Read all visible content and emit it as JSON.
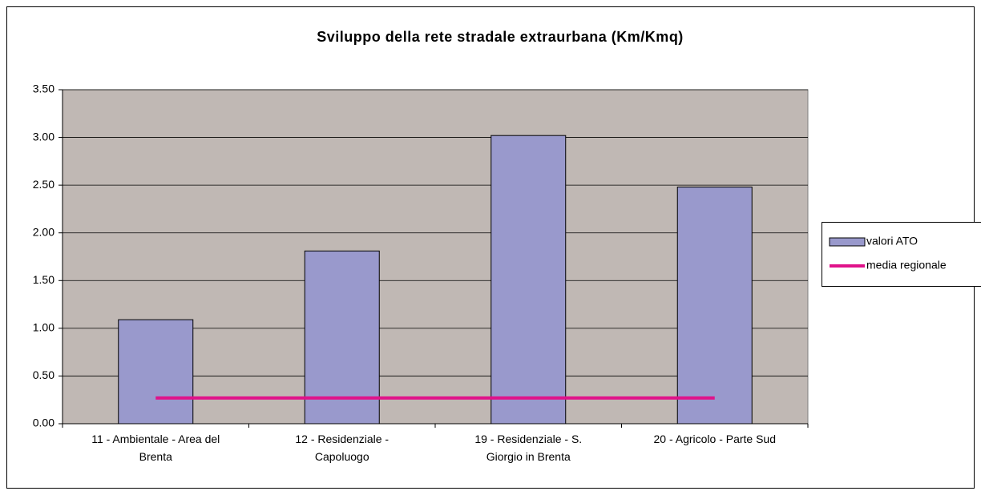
{
  "chart_data": {
    "type": "bar",
    "title": "Sviluppo della rete stradale extraurbana (Km/Kmq)",
    "categories": [
      "11 - Ambientale - Area del Brenta",
      "12 - Residenziale - Capoluogo",
      "19 - Residenziale - S. Giorgio in Brenta",
      "20 - Agricolo - Parte Sud"
    ],
    "series": [
      {
        "name": "valori ATO",
        "type": "bar",
        "color": "#9999cc",
        "values": [
          1.09,
          1.81,
          3.02,
          2.48
        ]
      },
      {
        "name": "media regionale",
        "type": "line",
        "color": "#e0128a",
        "values": [
          0.27,
          0.27,
          0.27,
          0.27
        ]
      }
    ],
    "ylim": [
      0,
      3.5
    ],
    "yticks": [
      {
        "value": 0,
        "label": "0.00"
      },
      {
        "value": 0.5,
        "label": "0.50"
      },
      {
        "value": 1,
        "label": "1.00"
      },
      {
        "value": 1.5,
        "label": "1.50"
      },
      {
        "value": 2,
        "label": "2.00"
      },
      {
        "value": 2.5,
        "label": "2.50"
      },
      {
        "value": 3,
        "label": "3.00"
      },
      {
        "value": 3.5,
        "label": "3.50"
      }
    ],
    "grid": true,
    "legend": "right",
    "plot_background": "#c0b8b4"
  }
}
